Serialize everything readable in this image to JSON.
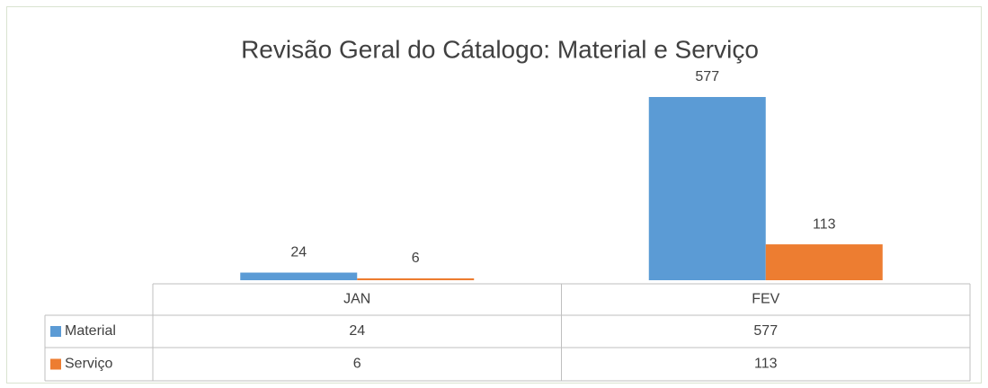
{
  "chart_data": {
    "type": "bar",
    "title": "Revisão Geral do Cátalogo: Material e Serviço",
    "categories": [
      "JAN",
      "FEV"
    ],
    "series": [
      {
        "name": "Material",
        "color": "#5b9bd5",
        "values": [
          24,
          577
        ]
      },
      {
        "name": "Serviço",
        "color": "#ed7d31",
        "values": [
          6,
          113
        ]
      }
    ],
    "data_table": true
  }
}
